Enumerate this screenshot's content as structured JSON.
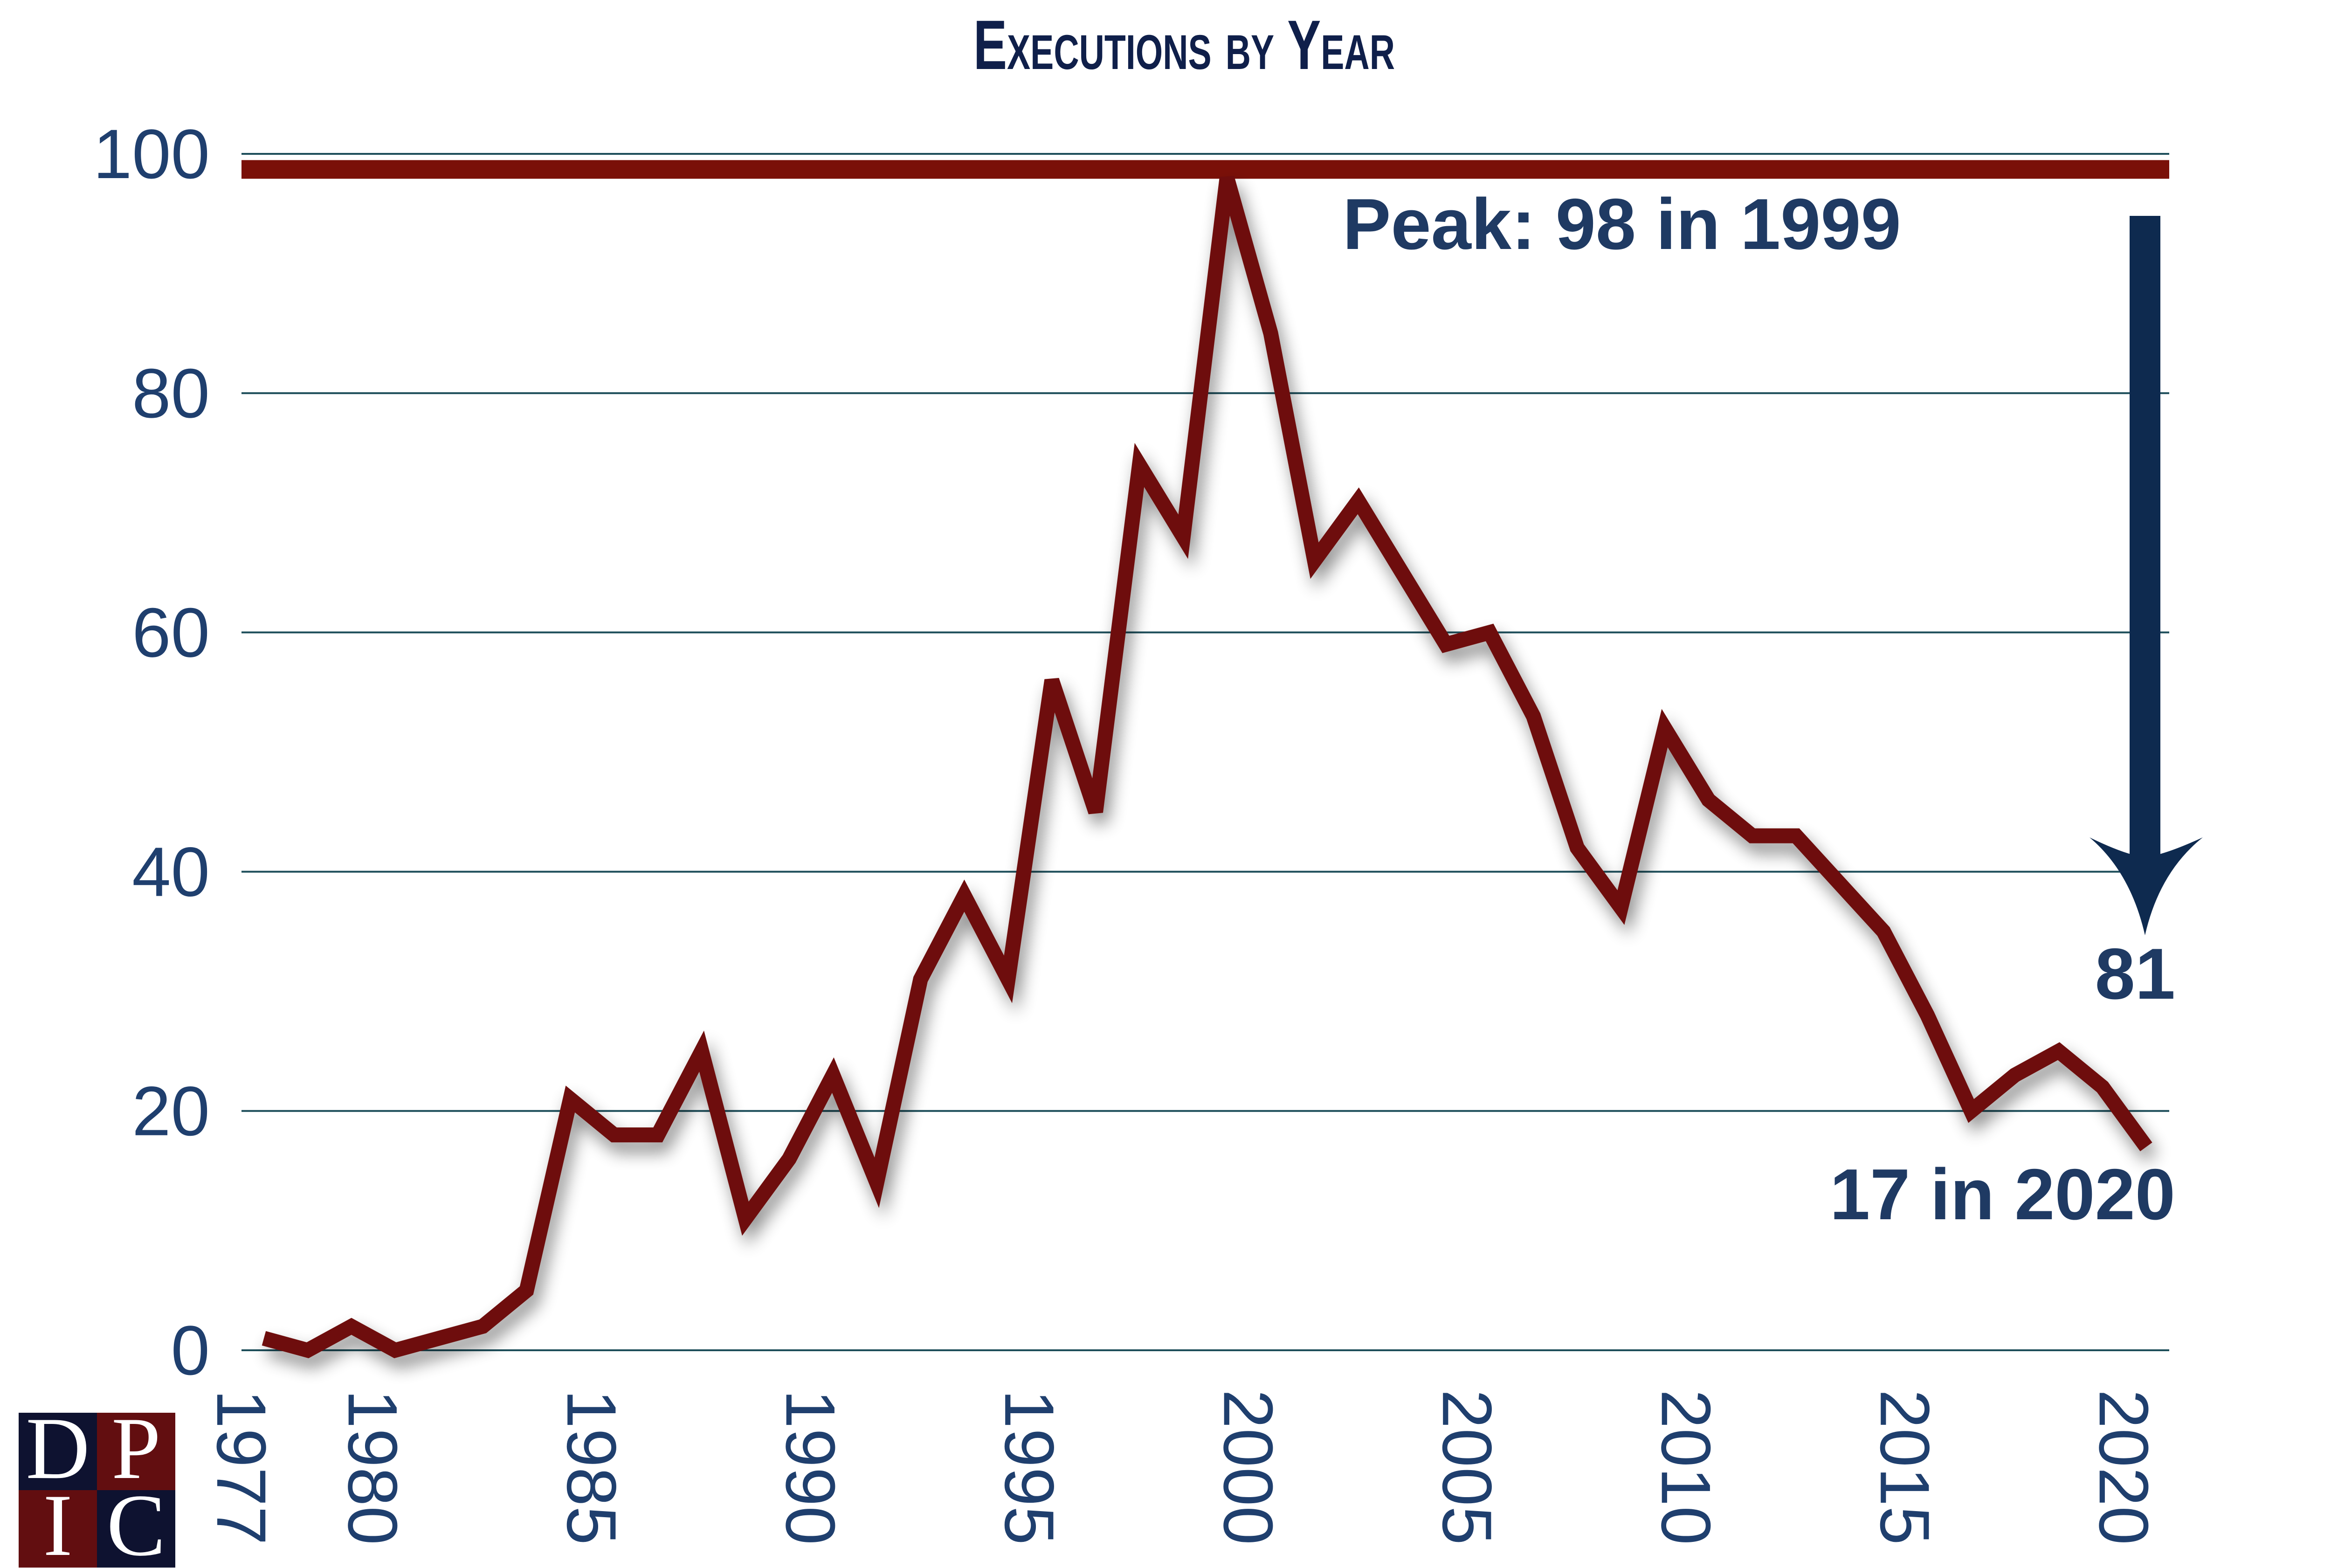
{
  "chart_data": {
    "type": "line",
    "title": "Executions by Year",
    "xlabel": "",
    "ylabel": "",
    "ylim": [
      0,
      100
    ],
    "yticks": [
      0,
      20,
      40,
      60,
      80,
      100
    ],
    "xticks": [
      1977,
      1980,
      1985,
      1990,
      1995,
      2000,
      2005,
      2010,
      2015,
      2020
    ],
    "grid": true,
    "x": [
      1977,
      1978,
      1979,
      1980,
      1981,
      1982,
      1983,
      1984,
      1985,
      1986,
      1987,
      1988,
      1989,
      1990,
      1991,
      1992,
      1993,
      1994,
      1995,
      1996,
      1997,
      1998,
      1999,
      2000,
      2001,
      2002,
      2003,
      2004,
      2005,
      2006,
      2007,
      2008,
      2009,
      2010,
      2011,
      2012,
      2013,
      2014,
      2015,
      2016,
      2017,
      2018,
      2019,
      2020
    ],
    "series": [
      {
        "name": "Executions",
        "color": "#6e0f08",
        "values": [
          1,
          0,
          2,
          0,
          1,
          2,
          5,
          21,
          18,
          18,
          25,
          11,
          16,
          23,
          14,
          31,
          38,
          31,
          56,
          45,
          74,
          68,
          98,
          85,
          66,
          71,
          65,
          59,
          60,
          53,
          42,
          37,
          52,
          46,
          43,
          43,
          39,
          35,
          28,
          20,
          23,
          25,
          22,
          17
        ]
      }
    ],
    "reference_line": {
      "value": 98,
      "color": "#7a1008"
    },
    "annotations": {
      "peak": "Peak: 98 in 1999",
      "drop": "81",
      "latest": "17 in 2020"
    },
    "arrow_color": "#0e2a4f",
    "text_color": "#1f3a63"
  },
  "logo": {
    "letters": [
      "D",
      "P",
      "I",
      "C"
    ],
    "colors": [
      "#0e1230",
      "#620e10"
    ]
  }
}
